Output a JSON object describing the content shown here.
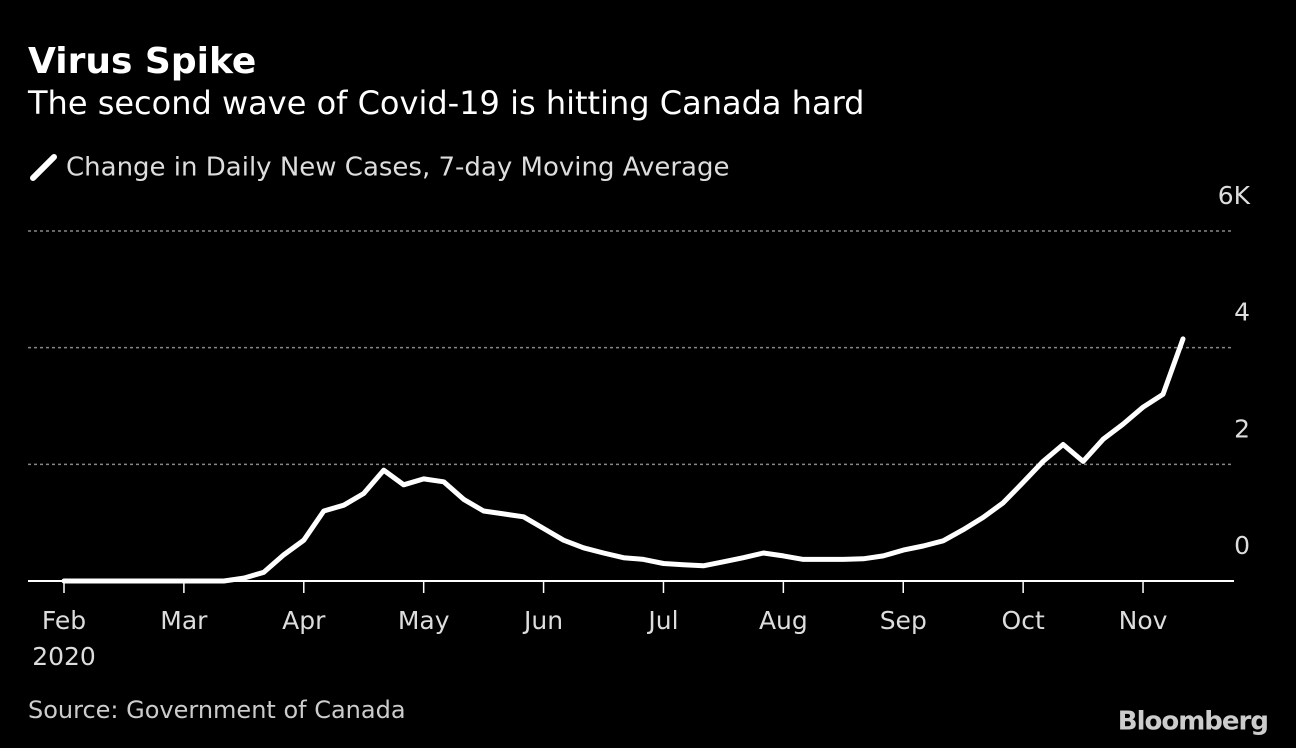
{
  "chart_data": {
    "type": "line",
    "title": "Virus Spike",
    "subtitle": "The second wave of Covid-19 is hitting Canada hard",
    "source": "Source: Government of Canada",
    "brand": "Bloomberg",
    "year_label": "2020",
    "grid": true,
    "ylim": [
      0,
      6
    ],
    "yticks": [
      0,
      2,
      4,
      {
        "value": 6,
        "label": "6K"
      }
    ],
    "categories": [
      "Feb",
      null,
      null,
      null,
      null,
      null,
      "Mar",
      null,
      null,
      null,
      null,
      null,
      "Apr",
      null,
      null,
      null,
      null,
      null,
      "May",
      null,
      null,
      null,
      null,
      null,
      "Jun",
      null,
      null,
      null,
      null,
      null,
      "Jul",
      null,
      null,
      null,
      null,
      null,
      "Aug",
      null,
      null,
      null,
      null,
      null,
      "Sep",
      null,
      null,
      null,
      null,
      null,
      "Oct",
      null,
      null,
      null,
      null,
      null,
      "Nov",
      null,
      null
    ],
    "series": [
      {
        "name": "Change in Daily New Cases, 7-day Moving Average",
        "color": "#ffffff",
        "values": [
          0,
          0,
          0,
          0,
          0,
          0,
          0,
          0,
          0,
          0.05,
          0.15,
          0.45,
          0.7,
          1.2,
          1.3,
          1.5,
          1.9,
          1.65,
          1.75,
          1.7,
          1.4,
          1.2,
          1.15,
          1.1,
          0.9,
          0.7,
          0.57,
          0.48,
          0.4,
          0.37,
          0.3,
          0.28,
          0.26,
          0.33,
          0.4,
          0.48,
          0.43,
          0.37,
          0.37,
          0.37,
          0.38,
          0.43,
          0.53,
          0.6,
          0.69,
          0.88,
          1.09,
          1.34,
          1.69,
          2.05,
          2.34,
          2.05,
          2.43,
          2.69,
          2.98,
          3.2,
          4.15
        ]
      }
    ]
  }
}
